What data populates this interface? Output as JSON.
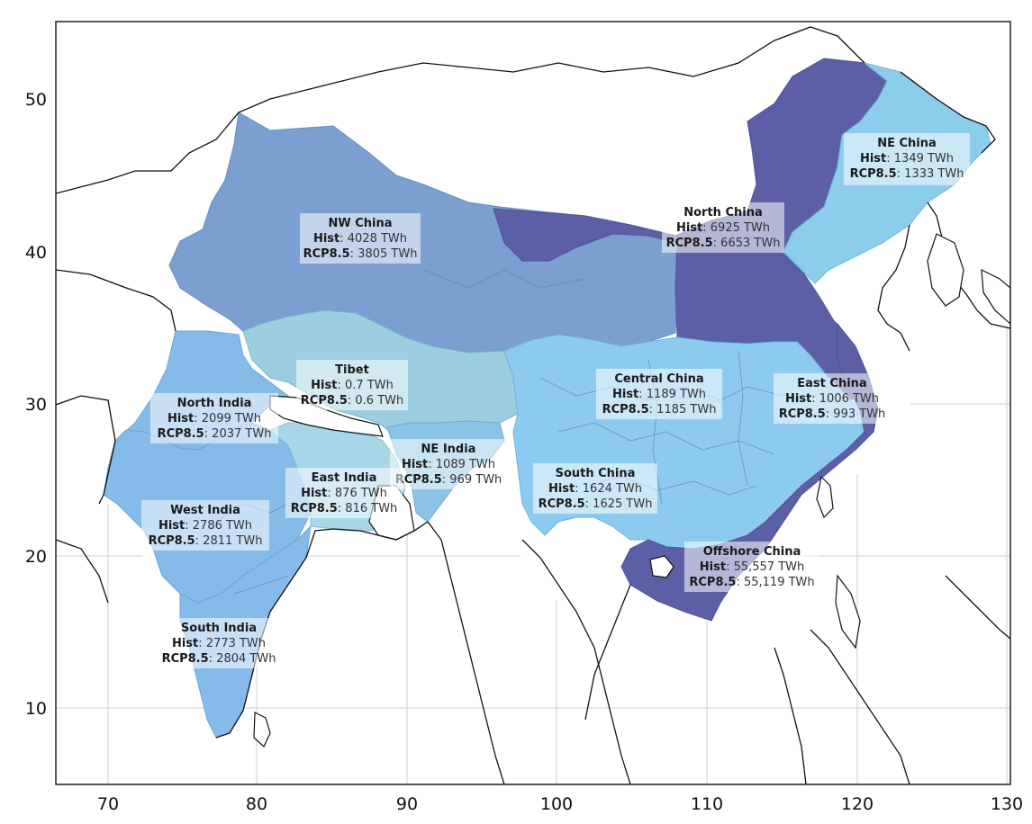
{
  "axes": {
    "x_ticks": [
      "70",
      "80",
      "90",
      "100",
      "110",
      "120",
      "130"
    ],
    "y_ticks": [
      "50",
      "40",
      "30",
      "20",
      "10"
    ]
  },
  "colors": {
    "nw_china": "#7b9fd0",
    "north_china": "#5c5fa6",
    "ne_china": "#8ccdec",
    "tibet": "#9ccedf",
    "central_south_east_china": "#8ccbef",
    "offshore_china": "#5c5fa6",
    "india_north_west_south": "#84bbe8",
    "east_india": "#a6d6e8",
    "ne_india": "#8ac3e6",
    "decrease": "#e3341c",
    "increase": "#2e7d32",
    "label_box": "#ffffff"
  },
  "regions": [
    {
      "id": "ne-china",
      "name": "NE China",
      "hist_key": "Hist",
      "hist_val": ": 1349 TWh",
      "rcp_key": "RCP8.5",
      "rcp_val": ": 1333 TWh",
      "trend": "decrease"
    },
    {
      "id": "north-china",
      "name": "North China",
      "hist_key": "Hist",
      "hist_val": ": 6925 TWh",
      "rcp_key": "RCP8.5",
      "rcp_val": ": 6653 TWh",
      "trend": "decrease"
    },
    {
      "id": "nw-china",
      "name": "NW China",
      "hist_key": "Hist",
      "hist_val": ": 4028 TWh",
      "rcp_key": "RCP8.5",
      "rcp_val": ": 3805 TWh",
      "trend": "decrease"
    },
    {
      "id": "tibet",
      "name": "Tibet",
      "hist_key": "Hist",
      "hist_val": ": 0.7 TWh",
      "rcp_key": "RCP8.5",
      "rcp_val": ": 0.6 TWh",
      "trend": "decrease"
    },
    {
      "id": "central-china",
      "name": "Central China",
      "hist_key": "Hist",
      "hist_val": ": 1189 TWh",
      "rcp_key": "RCP8.5",
      "rcp_val": ": 1185 TWh",
      "trend": "decrease"
    },
    {
      "id": "east-china",
      "name": "East China",
      "hist_key": "Hist",
      "hist_val": ": 1006 TWh",
      "rcp_key": "RCP8.5",
      "rcp_val": ": 993 TWh",
      "trend": "decrease"
    },
    {
      "id": "north-india",
      "name": "North India",
      "hist_key": "Hist",
      "hist_val": ": 2099 TWh",
      "rcp_key": "RCP8.5",
      "rcp_val": ": 2037 TWh",
      "trend": "decrease"
    },
    {
      "id": "ne-india",
      "name": "NE India",
      "hist_key": "Hist",
      "hist_val": ": 1089 TWh",
      "rcp_key": "RCP8.5",
      "rcp_val": ": 969 TWh",
      "trend": "decrease"
    },
    {
      "id": "east-india",
      "name": "East India",
      "hist_key": "Hist",
      "hist_val": ": 876 TWh",
      "rcp_key": "RCP8.5",
      "rcp_val": ": 816 TWh",
      "trend": "decrease"
    },
    {
      "id": "south-china",
      "name": "South China",
      "hist_key": "Hist",
      "hist_val": ": 1624 TWh",
      "rcp_key": "RCP8.5",
      "rcp_val": ": 1625 TWh",
      "trend": "increase"
    },
    {
      "id": "west-india",
      "name": "West India",
      "hist_key": "Hist",
      "hist_val": ": 2786 TWh",
      "rcp_key": "RCP8.5",
      "rcp_val": ": 2811 TWh",
      "trend": "increase"
    },
    {
      "id": "offshore-china",
      "name": "Offshore China",
      "hist_key": "Hist",
      "hist_val": ": 55,557 TWh",
      "rcp_key": "RCP8.5",
      "rcp_val": ": 55,119 TWh",
      "trend": "decrease"
    },
    {
      "id": "south-india",
      "name": "South India",
      "hist_key": "Hist",
      "hist_val": ": 2773 TWh",
      "rcp_key": "RCP8.5",
      "rcp_val": ": 2804 TWh",
      "trend": "increase"
    }
  ]
}
